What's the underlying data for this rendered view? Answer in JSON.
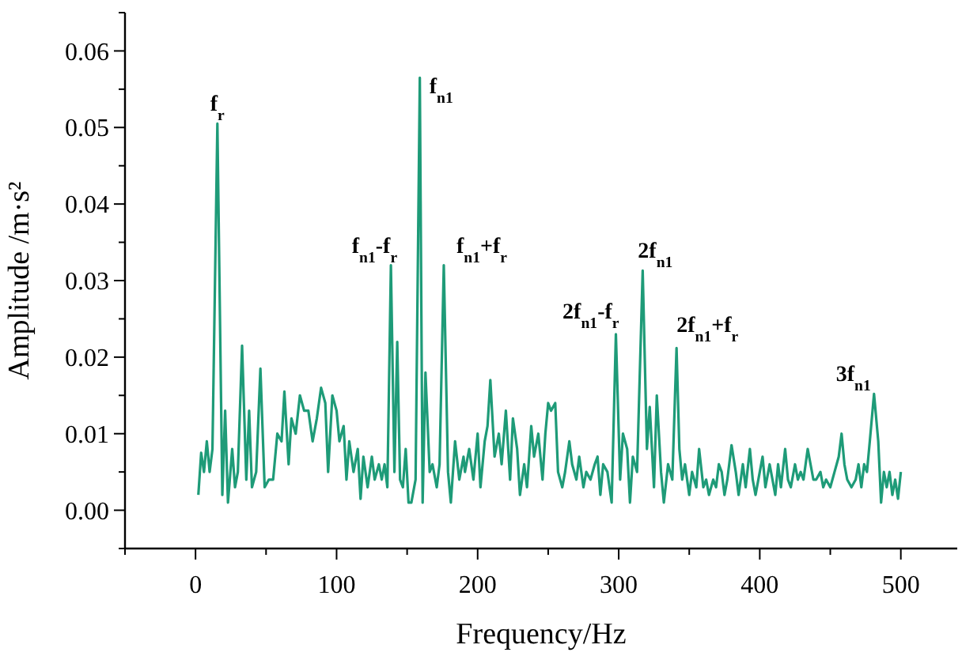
{
  "chart_data": {
    "type": "line",
    "xlabel": "Frequency/Hz",
    "ylabel": "Amplitude /m·s²",
    "xlim": [
      -50,
      540
    ],
    "ylim": [
      -0.005,
      0.065
    ],
    "xticks": [
      {
        "value": -50,
        "label": null
      },
      0,
      {
        "value": 50,
        "label": null
      },
      100,
      {
        "value": 150,
        "label": null
      },
      200,
      {
        "value": 250,
        "label": null
      },
      300,
      {
        "value": 350,
        "label": null
      },
      400,
      {
        "value": 450,
        "label": null
      },
      500
    ],
    "yticks": [
      {
        "value": -0.005,
        "label": null
      },
      "0.00",
      {
        "value": 0.005,
        "label": null
      },
      {
        "value": 0.01,
        "label": "0.01"
      },
      {
        "value": 0.015,
        "label": null
      },
      {
        "value": 0.02,
        "label": "0.02"
      },
      {
        "value": 0.025,
        "label": null
      },
      {
        "value": 0.03,
        "label": "0.03"
      },
      {
        "value": 0.035,
        "label": null
      },
      {
        "value": 0.04,
        "label": "0.04"
      },
      {
        "value": 0.045,
        "label": null
      },
      {
        "value": 0.05,
        "label": "0.05"
      },
      {
        "value": 0.055,
        "label": null
      },
      {
        "value": 0.06,
        "label": "0.06"
      },
      {
        "value": 0.065,
        "label": null
      }
    ],
    "grid": false,
    "marker": "none",
    "line_style": "solid",
    "series": [
      {
        "color": "#1e9b78",
        "x": [
          2,
          4,
          6,
          8,
          10,
          12,
          15.5,
          19,
          21,
          23,
          26,
          28,
          30,
          33,
          36,
          38,
          40,
          43,
          46,
          49,
          52,
          55,
          58,
          61,
          63,
          66,
          68,
          71,
          74,
          77,
          80,
          83,
          86,
          89,
          92,
          94,
          97,
          100,
          102,
          105,
          107,
          109,
          112,
          115,
          117,
          119,
          122,
          125,
          127,
          130,
          132,
          134,
          136,
          138.5,
          141,
          143,
          145,
          147,
          149,
          151,
          153,
          156,
          159,
          161,
          163,
          166,
          168,
          171,
          173,
          176,
          179,
          181,
          184,
          187,
          190,
          191,
          194,
          197,
          200,
          202,
          205,
          207,
          209,
          212,
          215,
          217,
          220,
          223,
          225,
          228,
          230,
          233,
          235,
          238,
          240,
          243,
          246,
          248,
          250,
          252,
          255,
          257,
          260,
          262,
          265,
          267,
          270,
          272,
          275,
          277,
          280,
          283,
          285,
          287,
          289,
          292,
          295,
          298,
          301,
          303,
          306,
          308,
          310,
          313,
          317,
          320,
          322,
          325,
          327,
          330,
          332,
          335,
          338,
          341,
          343,
          345,
          347,
          350,
          352,
          355,
          357,
          360,
          362,
          364,
          367,
          369,
          371,
          373,
          375,
          377,
          380,
          383,
          385,
          388,
          390,
          393,
          395,
          397,
          400,
          402,
          404,
          407,
          409,
          411,
          413,
          415,
          418,
          420,
          422,
          425,
          427,
          429,
          431,
          434,
          436,
          438,
          440,
          443,
          445,
          447,
          450,
          453,
          456,
          458,
          460,
          462,
          465,
          468,
          470,
          472,
          474,
          476,
          478,
          481,
          484,
          486,
          488,
          490,
          492,
          494,
          496,
          498,
          500
        ],
        "values": [
          0.002,
          0.0075,
          0.005,
          0.009,
          0.005,
          0.008,
          0.0505,
          0.002,
          0.013,
          0.001,
          0.008,
          0.003,
          0.005,
          0.0215,
          0.004,
          0.013,
          0.003,
          0.005,
          0.0185,
          0.003,
          0.004,
          0.004,
          0.01,
          0.009,
          0.0155,
          0.006,
          0.012,
          0.01,
          0.015,
          0.013,
          0.013,
          0.009,
          0.012,
          0.016,
          0.014,
          0.005,
          0.015,
          0.013,
          0.009,
          0.011,
          0.004,
          0.009,
          0.005,
          0.008,
          0.0015,
          0.007,
          0.003,
          0.007,
          0.004,
          0.006,
          0.004,
          0.006,
          0.003,
          0.032,
          0.005,
          0.022,
          0.004,
          0.003,
          0.008,
          0.001,
          0.001,
          0.004,
          0.0565,
          0.001,
          0.018,
          0.005,
          0.006,
          0.003,
          0.006,
          0.032,
          0.005,
          0.001,
          0.009,
          0.004,
          0.007,
          0.005,
          0.008,
          0.004,
          0.01,
          0.003,
          0.009,
          0.011,
          0.017,
          0.007,
          0.01,
          0.006,
          0.013,
          0.004,
          0.012,
          0.008,
          0.002,
          0.006,
          0.003,
          0.011,
          0.007,
          0.01,
          0.004,
          0.01,
          0.014,
          0.013,
          0.014,
          0.005,
          0.003,
          0.005,
          0.009,
          0.006,
          0.004,
          0.007,
          0.003,
          0.005,
          0.004,
          0.006,
          0.007,
          0.002,
          0.006,
          0.005,
          0.001,
          0.023,
          0.004,
          0.01,
          0.008,
          0.001,
          0.007,
          0.005,
          0.0313,
          0.008,
          0.0135,
          0.003,
          0.015,
          0.005,
          0.001,
          0.006,
          0.004,
          0.0212,
          0.008,
          0.004,
          0.006,
          0.002,
          0.005,
          0.003,
          0.008,
          0.003,
          0.004,
          0.002,
          0.004,
          0.003,
          0.006,
          0.005,
          0.002,
          0.004,
          0.0085,
          0.005,
          0.002,
          0.006,
          0.003,
          0.008,
          0.004,
          0.002,
          0.005,
          0.007,
          0.003,
          0.006,
          0.004,
          0.002,
          0.006,
          0.003,
          0.008,
          0.004,
          0.003,
          0.006,
          0.004,
          0.005,
          0.004,
          0.008,
          0.006,
          0.004,
          0.004,
          0.005,
          0.003,
          0.004,
          0.003,
          0.005,
          0.007,
          0.01,
          0.006,
          0.004,
          0.003,
          0.004,
          0.006,
          0.003,
          0.006,
          0.005,
          0.009,
          0.0152,
          0.009,
          0.001,
          0.005,
          0.003,
          0.005,
          0.002,
          0.004,
          0.0015,
          0.005
        ]
      }
    ],
    "annotations": [
      {
        "text": "f$_{r}$",
        "x": 15.5,
        "y": 0.0505
      },
      {
        "text": "f$_{n1}$",
        "x": 159,
        "y": 0.0565
      },
      {
        "text": "f$_{n1}$-f$_{r}$",
        "x": 138.5,
        "y": 0.032
      },
      {
        "text": "f$_{n1}$+f$_{r}$",
        "x": 176,
        "y": 0.032
      },
      {
        "text": "2f$_{n1}$-f$_{r}$",
        "x": 298,
        "y": 0.023
      },
      {
        "text": "2f$_{n1}$",
        "x": 317,
        "y": 0.0313
      },
      {
        "text": "2f$_{n1}$+f$_{r}$",
        "x": 341,
        "y": 0.0212
      },
      {
        "text": "3f$_{n1}$",
        "x": 481,
        "y": 0.0152
      }
    ]
  }
}
